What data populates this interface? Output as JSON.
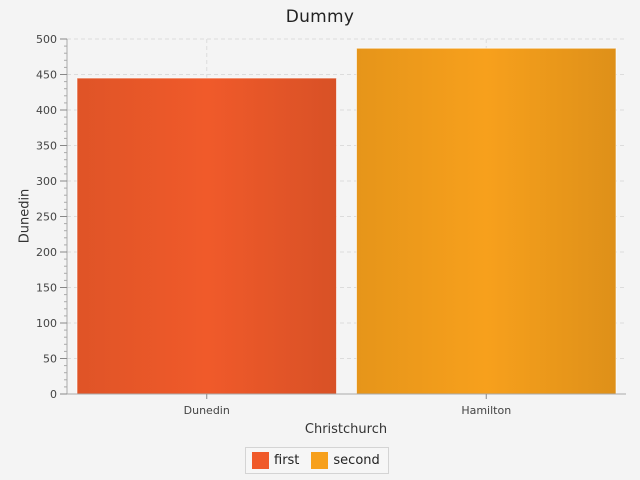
{
  "chart_data": {
    "type": "bar",
    "title": "Dummy",
    "xlabel": "Christchurch",
    "ylabel": "Dunedin",
    "categories": [
      "Dunedin",
      "Hamilton"
    ],
    "series": [
      {
        "name": "first",
        "color": "#f05a2a",
        "values": [
          445,
          0
        ]
      },
      {
        "name": "second",
        "color": "#f7a01c",
        "values": [
          0,
          487
        ]
      }
    ],
    "ylim": [
      0,
      500
    ],
    "yticks": [
      0,
      50,
      100,
      150,
      200,
      250,
      300,
      350,
      400,
      450,
      500
    ],
    "grid": true,
    "legend_position": "bottom"
  }
}
